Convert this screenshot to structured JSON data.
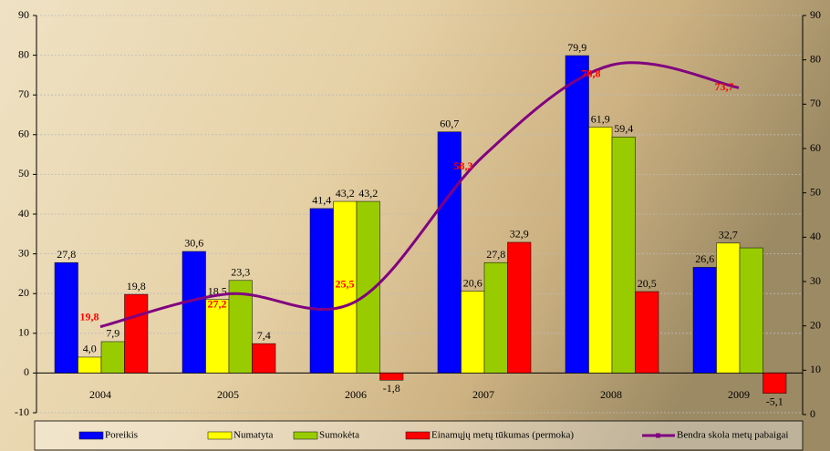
{
  "chart_data": {
    "type": "bar",
    "categories": [
      "2004",
      "2005",
      "2006",
      "2007",
      "2008",
      "2009"
    ],
    "series": [
      {
        "name": "Poreikis",
        "color": "#0000ff",
        "values": [
          27.8,
          30.6,
          41.4,
          60.7,
          79.9,
          26.6
        ],
        "value_labels": [
          "27,8",
          "30,6",
          "41,4",
          "60,7",
          "79,9",
          "26,6"
        ]
      },
      {
        "name": "Numatyta",
        "color": "#ffff00",
        "values": [
          4.0,
          18.5,
          43.2,
          20.6,
          61.9,
          32.7
        ],
        "value_labels": [
          "4,0",
          "18,5",
          "43,2",
          "20,6",
          "61,9",
          "32,7"
        ]
      },
      {
        "name": "Sumokėta",
        "color": "#99cc00",
        "values": [
          7.9,
          23.3,
          43.2,
          27.8,
          59.4,
          31.5
        ],
        "value_labels": [
          "7,9",
          "23,3",
          "43,2",
          "27,8",
          "59,4",
          null
        ]
      },
      {
        "name": "Einamųjų metų tūkumas (permoka)",
        "color": "#ff0000",
        "values": [
          19.8,
          7.4,
          -1.8,
          32.9,
          20.5,
          -5.1
        ],
        "value_labels": [
          "19,8",
          "7,4",
          "-1,8",
          "32,9",
          "20,5",
          "-5,1"
        ]
      },
      {
        "name": "Bendra skola metų pabaigai",
        "color": "#800080",
        "type": "line",
        "axis": "y2",
        "values": [
          19.8,
          27.2,
          25.5,
          58.3,
          78.8,
          73.7
        ],
        "value_labels": [
          "19,8",
          "27,2",
          "25,5",
          "58,3",
          "78,8",
          "73,7"
        ]
      }
    ],
    "ylim": [
      -10,
      90
    ],
    "yticks": [
      -10,
      0,
      10,
      20,
      30,
      40,
      50,
      60,
      70,
      80,
      90
    ],
    "y2lim": [
      0,
      90
    ],
    "y2ticks": [
      0,
      10,
      20,
      30,
      40,
      50,
      60,
      70,
      80,
      90
    ],
    "grid": true,
    "legend": "bottom"
  }
}
